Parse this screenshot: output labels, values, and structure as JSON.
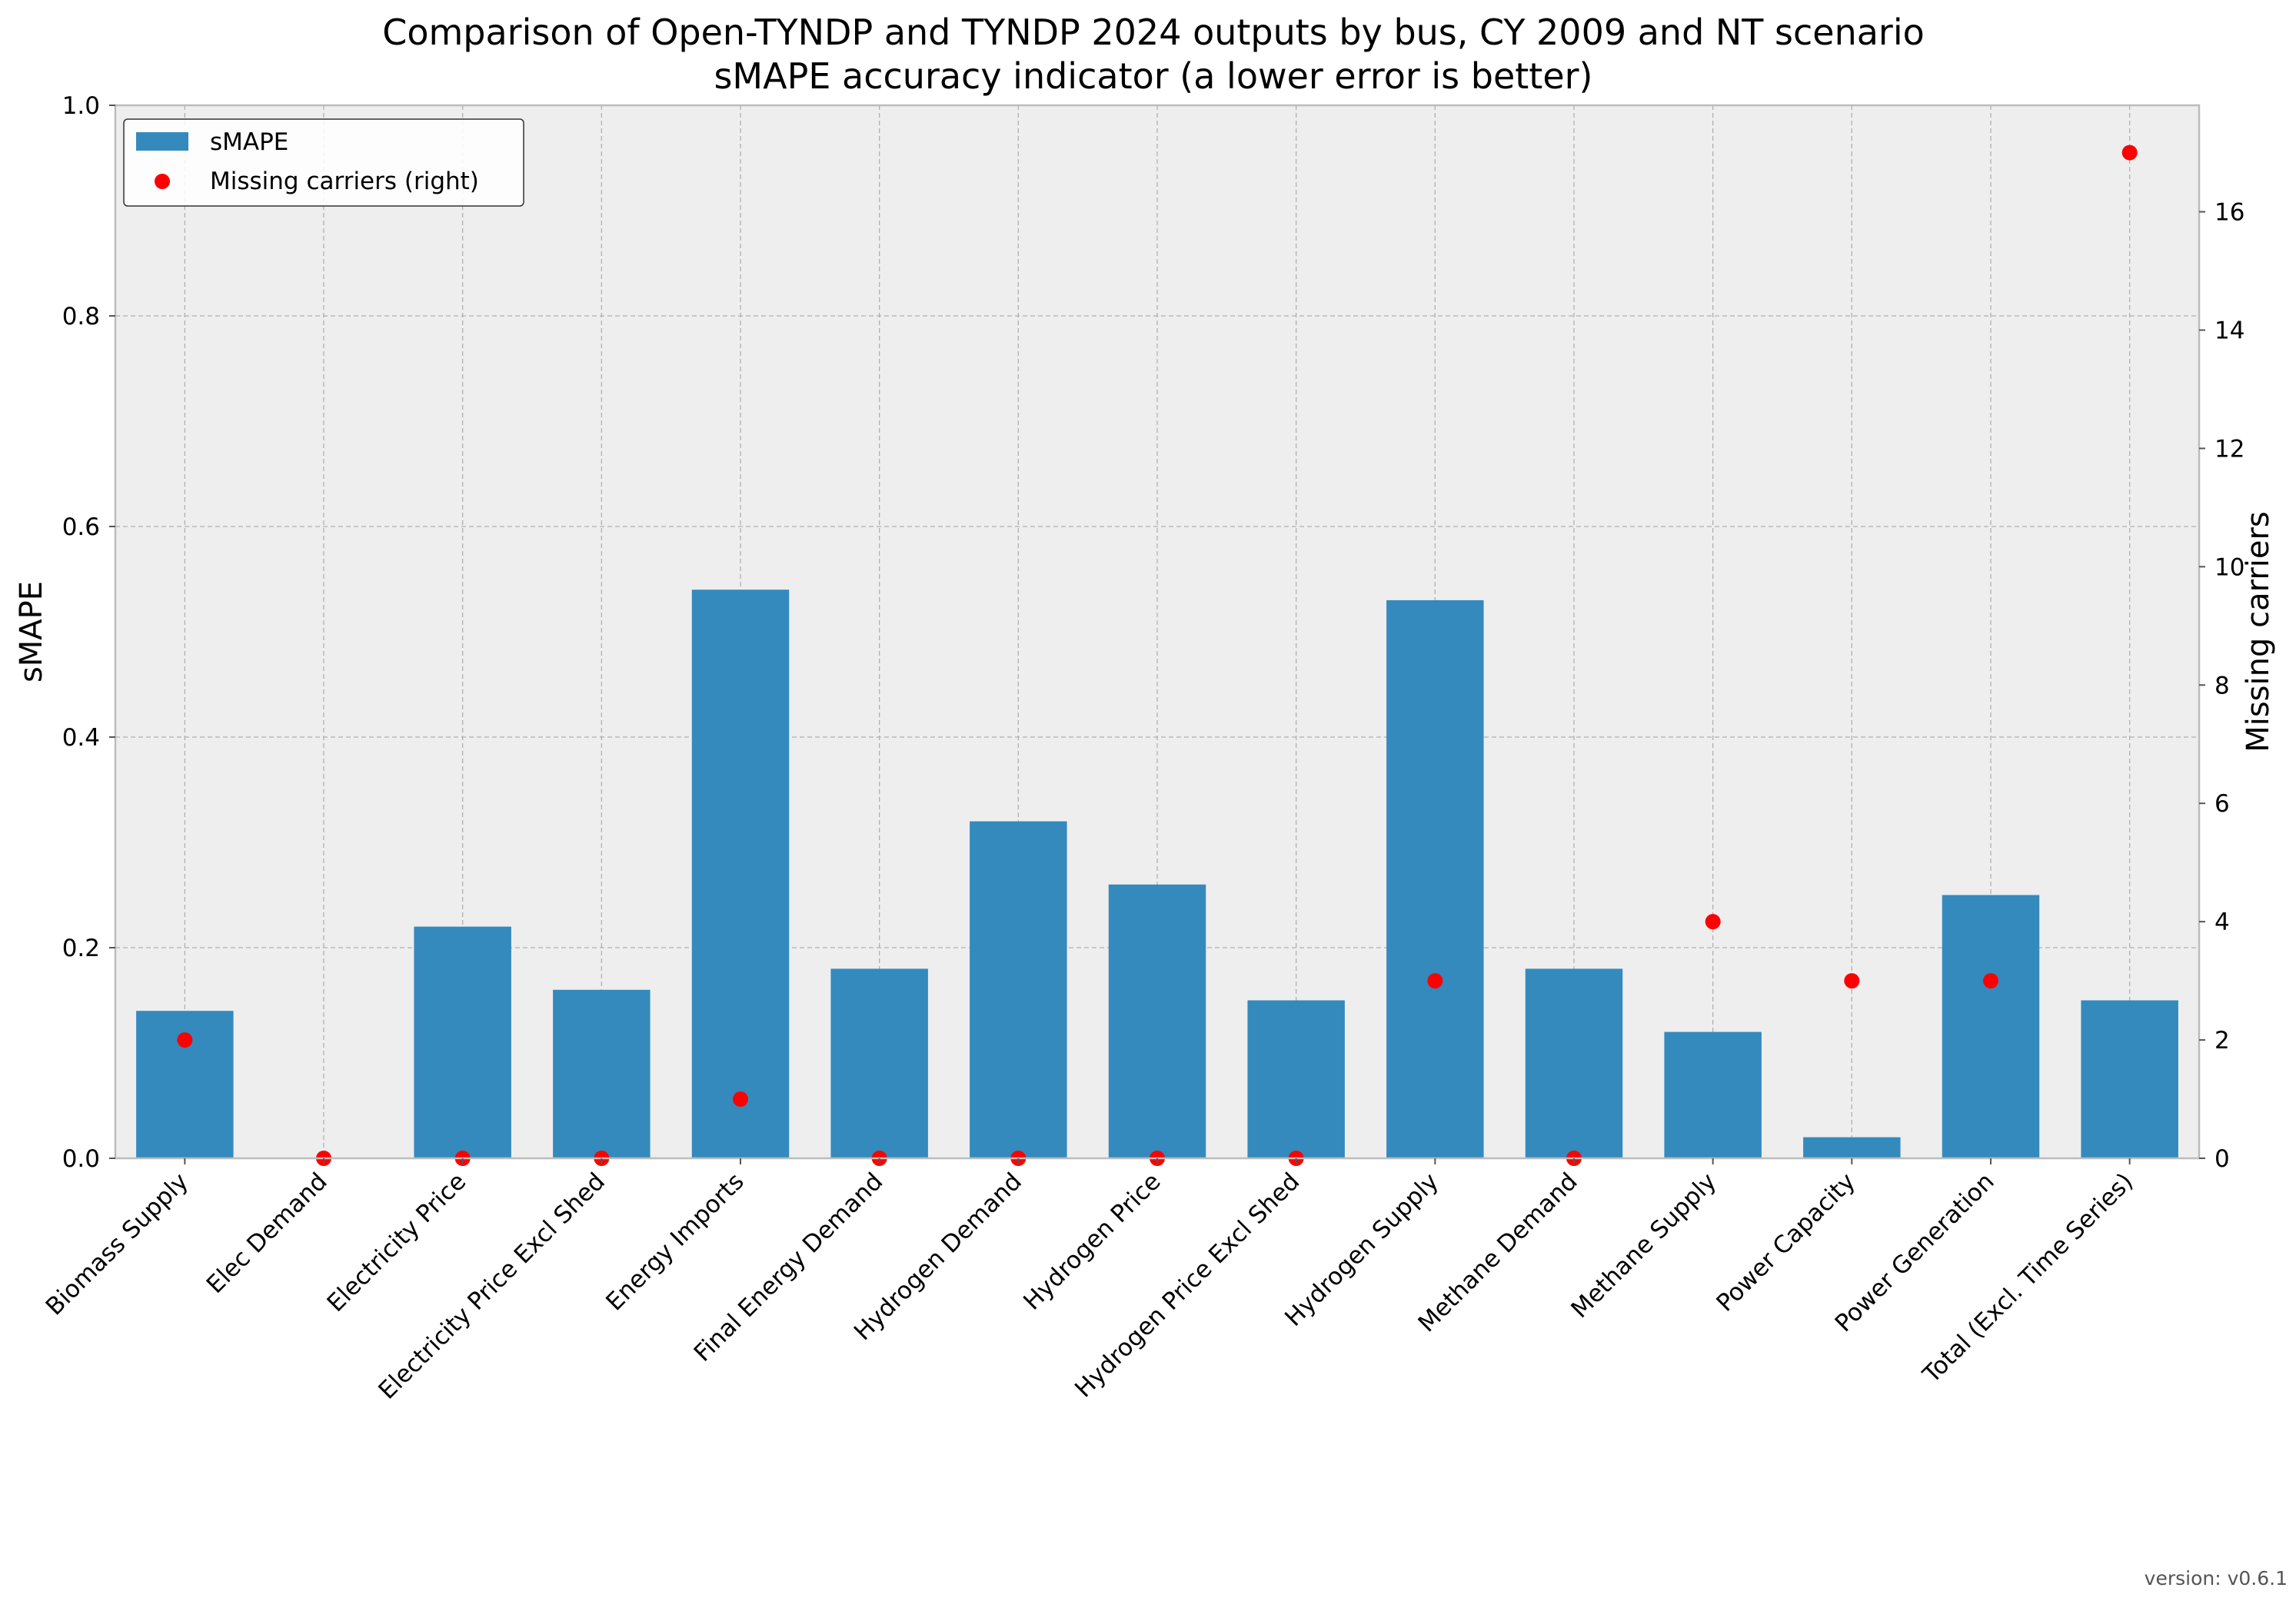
{
  "chart_data": {
    "type": "bar",
    "title": "Comparison of Open-TYNDP and TYNDP 2024 outputs by bus, CY 2009 and NT scenario",
    "subtitle": "sMAPE accuracy indicator (a lower error is better)",
    "ylabel": "sMAPE",
    "y2label": "Missing carriers",
    "xlabel": "",
    "ylim": [
      0,
      1.0
    ],
    "y2lim": [
      0,
      17.8
    ],
    "yticks": [
      "0.0",
      "0.2",
      "0.4",
      "0.6",
      "0.8",
      "1.0"
    ],
    "y2ticks": [
      "0",
      "2",
      "4",
      "6",
      "8",
      "10",
      "12",
      "14",
      "16"
    ],
    "grid": true,
    "legend_position": "top-left",
    "categories": [
      "Biomass Supply",
      "Elec Demand",
      "Electricity Price",
      "Electricity Price Excl Shed",
      "Energy Imports",
      "Final Energy Demand",
      "Hydrogen Demand",
      "Hydrogen Price",
      "Hydrogen Price Excl Shed",
      "Hydrogen Supply",
      "Methane Demand",
      "Methane Supply",
      "Power Capacity",
      "Power Generation",
      "Total (Excl. Time Series)"
    ],
    "series": [
      {
        "name": "sMAPE",
        "type": "bar",
        "axis": "left",
        "color": "#348abd",
        "values": [
          0.14,
          0.0,
          0.22,
          0.16,
          0.54,
          0.18,
          0.32,
          0.26,
          0.15,
          0.53,
          0.18,
          0.12,
          0.02,
          0.25,
          0.15
        ]
      },
      {
        "name": "Missing carriers (right)",
        "type": "scatter",
        "axis": "right",
        "color": "#ff0000",
        "values": [
          2,
          0,
          0,
          0,
          1,
          0,
          0,
          0,
          0,
          3,
          0,
          4,
          3,
          3,
          17
        ]
      }
    ],
    "colors": {
      "plot_background": "#eeeeee",
      "grid": "#b0b0b0",
      "spine": "#bcbcbc"
    }
  },
  "footer": {
    "version": "version: v0.6.1"
  }
}
